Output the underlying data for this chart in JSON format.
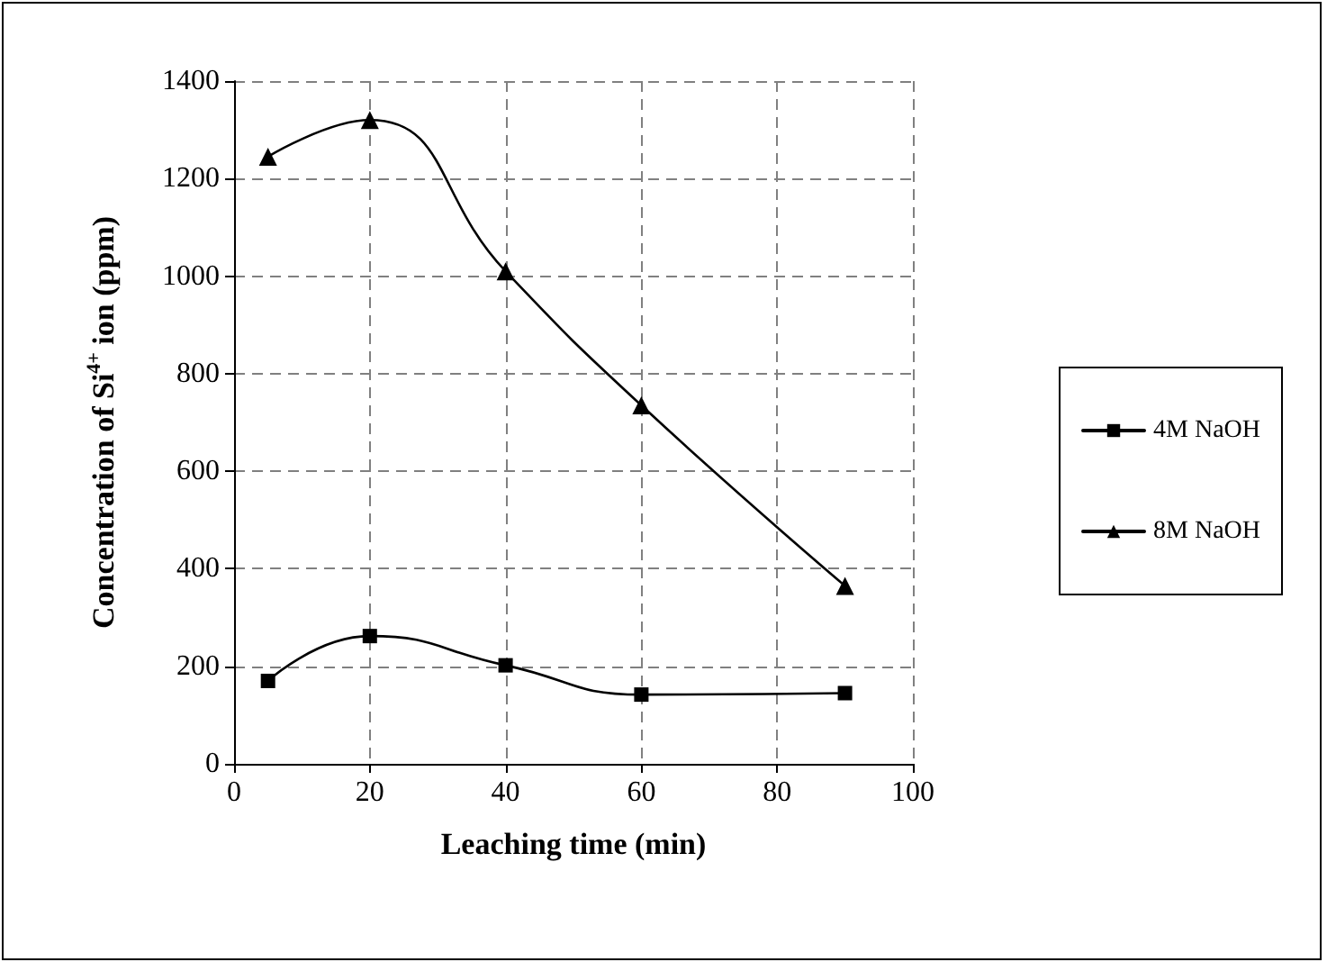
{
  "chart_data": {
    "type": "line",
    "xlabel": "Leaching time (min)",
    "ylabel": "Concentration of Si$^{4+}$ ion (ppm)",
    "x": [
      5,
      20,
      40,
      60,
      90
    ],
    "series": [
      {
        "name": "4M NaOH",
        "color": "#000000",
        "marker": "square",
        "values": [
          170,
          262,
          202,
          142,
          145
        ]
      },
      {
        "name": "8M NaOH",
        "color": "#000000",
        "marker": "triangle",
        "values": [
          1245,
          1320,
          1010,
          735,
          365
        ]
      }
    ],
    "xlim": [
      0,
      100
    ],
    "xticks": [
      0,
      20,
      40,
      60,
      80,
      100
    ],
    "ylim": [
      0,
      1400
    ],
    "yticks": [
      0,
      200,
      400,
      600,
      800,
      1000,
      1200,
      1400
    ],
    "grid": true,
    "legend": "right",
    "line_style": "solid"
  }
}
